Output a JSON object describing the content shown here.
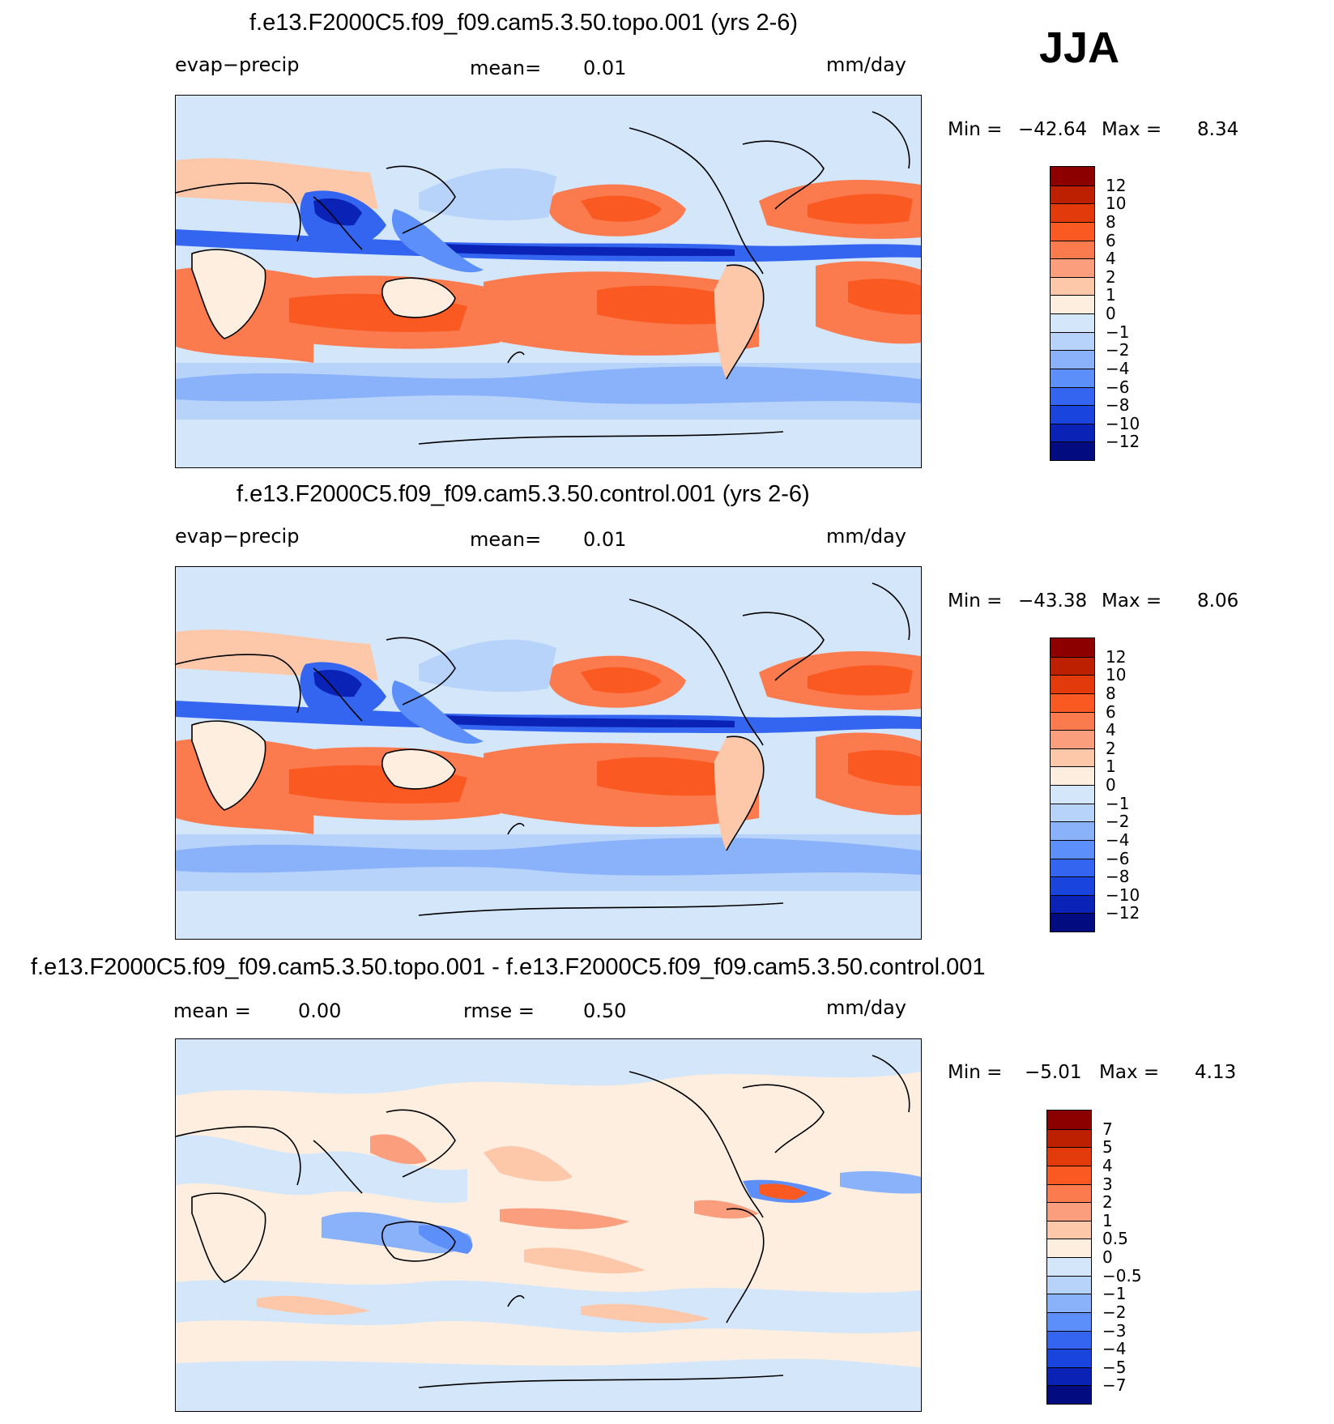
{
  "chart_data": [
    {
      "type": "heatmap",
      "title": "f.e13.F2000C5.f09_f09.cam5.3.50.topo.001 (yrs 2-6)",
      "variable": "evap−precip",
      "mean_label": "mean=",
      "mean_value": "0.01",
      "units": "mm/day",
      "min_label": "Min  =",
      "min_value": "−42.64",
      "max_label": "Max  =",
      "max_value": "8.34",
      "levels": [
        "12",
        "10",
        "8",
        "6",
        "4",
        "2",
        "1",
        "0",
        "−1",
        "−2",
        "−4",
        "−6",
        "−8",
        "−10",
        "−12"
      ],
      "colors": [
        "#8c0000",
        "#bd2000",
        "#e33a0b",
        "#fa5a22",
        "#fb7b4f",
        "#fb9e7e",
        "#fdc8aa",
        "#fdeedf",
        "#d3e6fa",
        "#b8d3fa",
        "#8ab2fb",
        "#5c8ffa",
        "#3465f0",
        "#1a44de",
        "#0a22b5",
        "#020b80"
      ]
    },
    {
      "type": "heatmap",
      "title": "f.e13.F2000C5.f09_f09.cam5.3.50.control.001 (yrs 2-6)",
      "variable": "evap−precip",
      "mean_label": "mean=",
      "mean_value": "0.01",
      "units": "mm/day",
      "min_label": "Min  =",
      "min_value": "−43.38",
      "max_label": "Max  =",
      "max_value": "8.06",
      "levels": [
        "12",
        "10",
        "8",
        "6",
        "4",
        "2",
        "1",
        "0",
        "−1",
        "−2",
        "−4",
        "−6",
        "−8",
        "−10",
        "−12"
      ],
      "colors": [
        "#8c0000",
        "#bd2000",
        "#e33a0b",
        "#fa5a22",
        "#fb7b4f",
        "#fb9e7e",
        "#fdc8aa",
        "#fdeedf",
        "#d3e6fa",
        "#b8d3fa",
        "#8ab2fb",
        "#5c8ffa",
        "#3465f0",
        "#1a44de",
        "#0a22b5",
        "#020b80"
      ]
    },
    {
      "type": "heatmap",
      "title": "f.e13.F2000C5.f09_f09.cam5.3.50.topo.001 - f.e13.F2000C5.f09_f09.cam5.3.50.control.001",
      "mean_label": "mean =",
      "mean_value": "0.00",
      "rmse_label": "rmse =",
      "rmse_value": "0.50",
      "units": "mm/day",
      "min_label": "Min  =",
      "min_value": "−5.01",
      "max_label": "Max  =",
      "max_value": "4.13",
      "levels": [
        "7",
        "5",
        "4",
        "3",
        "2",
        "1",
        "0.5",
        "0",
        "−0.5",
        "−1",
        "−2",
        "−3",
        "−4",
        "−5",
        "−7"
      ],
      "colors": [
        "#8c0000",
        "#bd2000",
        "#e33a0b",
        "#fa5a22",
        "#fb7b4f",
        "#fb9e7e",
        "#fdc8aa",
        "#fdeedf",
        "#d3e6fa",
        "#b8d3fa",
        "#8ab2fb",
        "#5c8ffa",
        "#3465f0",
        "#1a44de",
        "#0a22b5",
        "#020b80"
      ]
    }
  ],
  "season": "JJA"
}
